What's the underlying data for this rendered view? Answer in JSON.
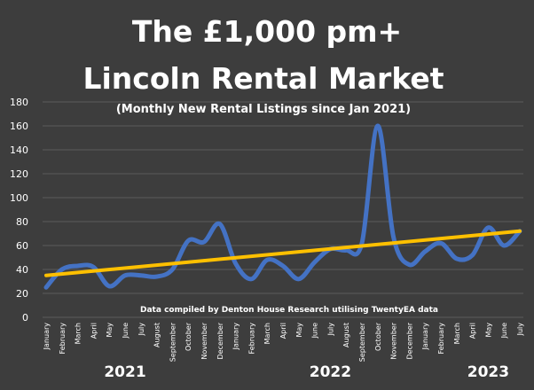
{
  "chart_data": {
    "type": "line",
    "title_line1": "The £1,000 pm+",
    "title_line2": "Lincoln Rental Market",
    "subtitle": "(Monthly New Rental Listings since Jan 2021)",
    "annotation": "Data compiled by Denton House Research utilising TwentyEA data",
    "years": [
      "2021",
      "2022",
      "2023"
    ],
    "categories": [
      "January",
      "February",
      "March",
      "April",
      "May",
      "June",
      "July",
      "August",
      "September",
      "October",
      "November",
      "December",
      "January",
      "February",
      "March",
      "April",
      "May",
      "June",
      "July",
      "August",
      "September",
      "October",
      "November",
      "December",
      "January",
      "February",
      "March",
      "April",
      "May",
      "June",
      "July"
    ],
    "values": [
      25,
      40,
      43,
      42,
      26,
      35,
      35,
      34,
      40,
      64,
      63,
      78,
      45,
      32,
      48,
      43,
      32,
      46,
      57,
      56,
      62,
      160,
      67,
      44,
      55,
      62,
      49,
      52,
      75,
      60,
      72
    ],
    "trendline": {
      "start": 35,
      "end": 72
    },
    "ylim": [
      0,
      180
    ],
    "yticks": [
      0,
      20,
      40,
      60,
      80,
      100,
      120,
      140,
      160,
      180
    ],
    "grid": true,
    "colors": {
      "series": "#4472c4",
      "trend": "#ffc000",
      "background": "#3d3d3d",
      "grid": "#5a5a5a"
    }
  }
}
